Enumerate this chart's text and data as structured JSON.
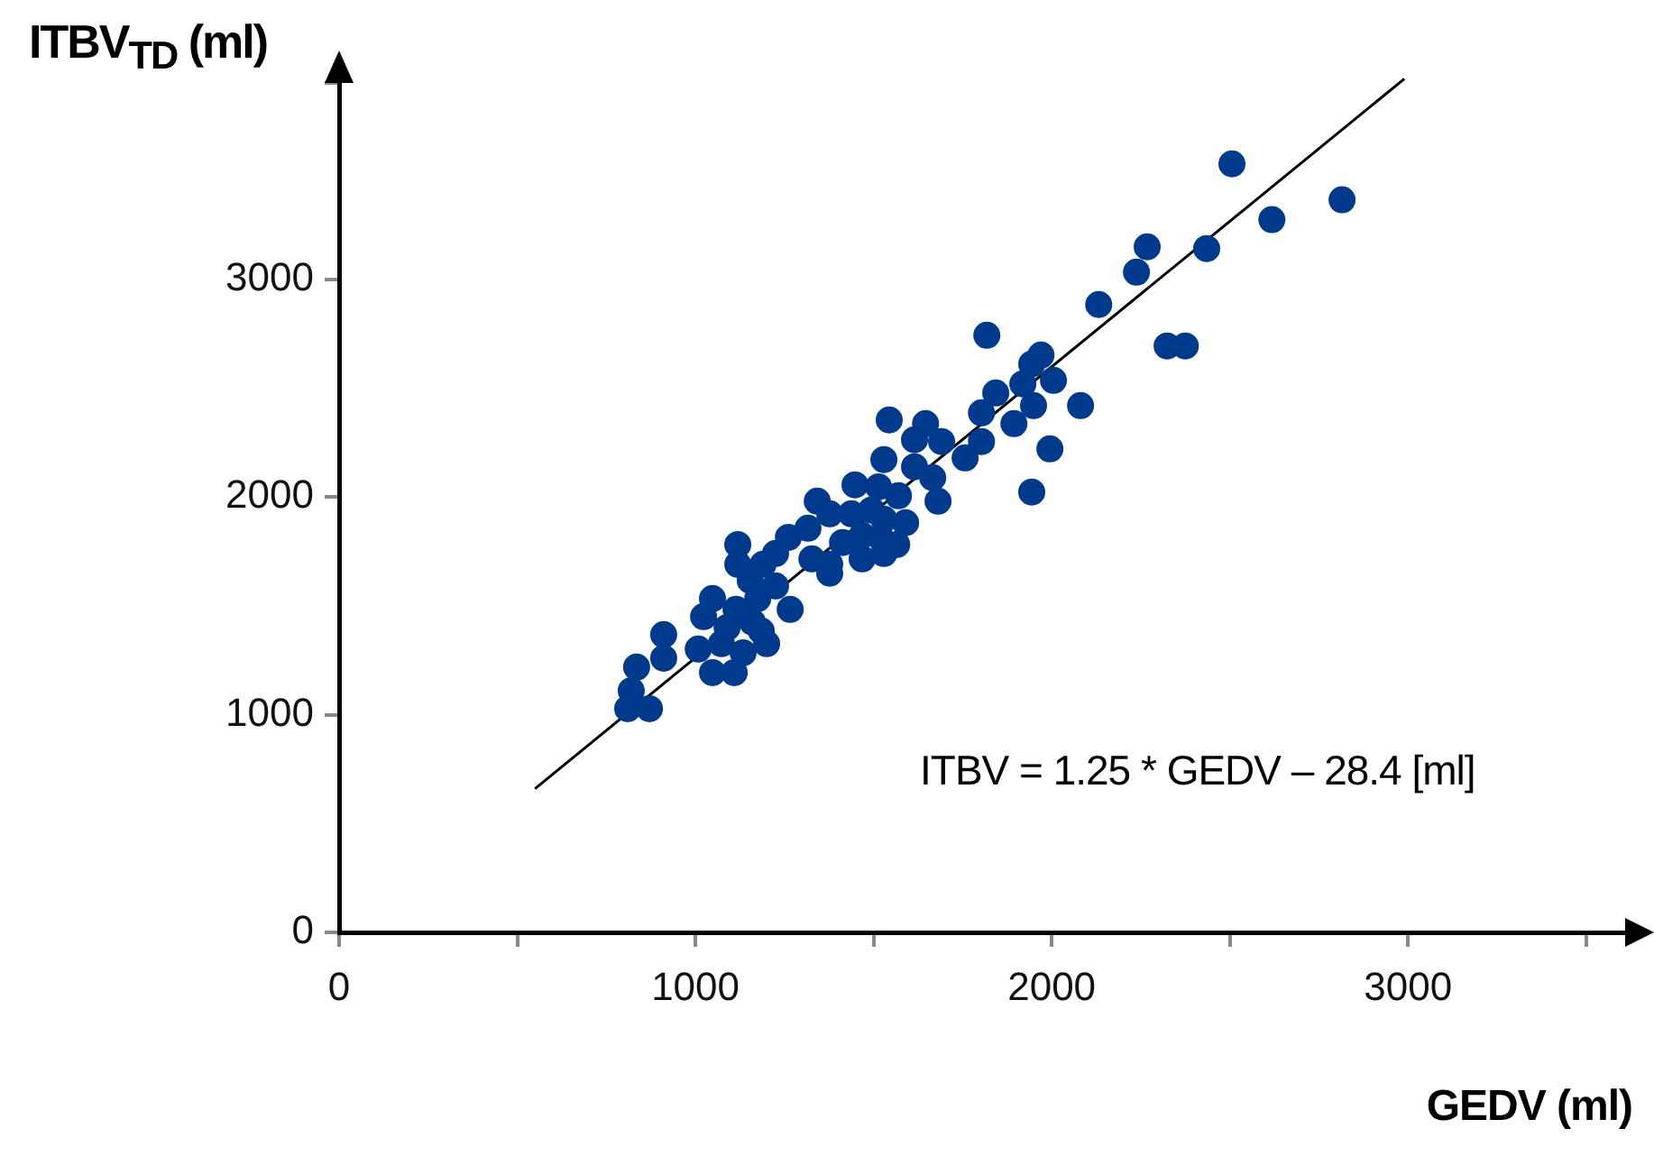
{
  "chart_data": {
    "type": "scatter",
    "xlabel": "GEDV (ml)",
    "ylabel": "ITBV$_{TD}$ (ml)",
    "annotations": [
      "ITBV = 1.25 * GEDV – 28.4 [ml]"
    ],
    "xlim": [
      0,
      3650
    ],
    "ylim": [
      0,
      4000
    ],
    "xticks": [
      0,
      {
        "value": 500,
        "label": null
      },
      1000,
      {
        "value": 1500,
        "label": null
      },
      2000,
      {
        "value": 2500,
        "label": null
      },
      3000,
      {
        "value": 3500,
        "label": null
      }
    ],
    "yticks": [
      0,
      1000,
      2000,
      3000,
      {
        "value": 3900,
        "label": null
      }
    ],
    "grid": false,
    "legend": false,
    "marker": "circle",
    "series": [
      {
        "color": "#003a8c",
        "x": [
          2506,
          2815,
          2618,
          2268,
          2435,
          2238,
          2132,
          2324,
          2375,
          1970,
          1944,
          1919,
          2005,
          1949,
          2081,
          1894,
          1995,
          1944,
          1818,
          1843,
          1803,
          1803,
          1757,
          1544,
          1646,
          1615,
          1691,
          1529,
          1615,
          1666,
          1681,
          1448,
          1514,
          1570,
          1342,
          1377,
          1438,
          1494,
          1529,
          1590,
          1316,
          1413,
          1468,
          1519,
          1565,
          1261,
          1225,
          1468,
          1529,
          1327,
          1377,
          1190,
          1119,
          1119,
          1154,
          1048,
          1023,
          1114,
          1175,
          1225,
          1266,
          1377,
          911,
          911,
          1008,
          1073,
          1134,
          1200,
          1048,
          1109,
          835,
          820,
          810,
          871,
          1160,
          1089,
          1185
        ],
        "values": [
          3529,
          3364,
          3273,
          3148,
          3140,
          3032,
          2883,
          2693,
          2693,
          2651,
          2610,
          2519,
          2535,
          2419,
          2419,
          2336,
          2220,
          2022,
          2742,
          2477,
          2386,
          2254,
          2179,
          2353,
          2336,
          2262,
          2254,
          2171,
          2138,
          2088,
          1980,
          2055,
          2046,
          2005,
          1980,
          1922,
          1922,
          1939,
          1897,
          1881,
          1856,
          1790,
          1823,
          1814,
          1781,
          1814,
          1740,
          1715,
          1740,
          1715,
          1690,
          1690,
          1781,
          1690,
          1616,
          1533,
          1450,
          1483,
          1533,
          1591,
          1483,
          1649,
          1367,
          1259,
          1301,
          1326,
          1284,
          1326,
          1193,
          1193,
          1218,
          1110,
          1027,
          1027,
          1425,
          1400,
          1384
        ]
      },
      {
        "type": "line",
        "color": "#000000",
        "x": [
          550,
          2990
        ],
        "values": [
          660,
          3920
        ],
        "marker": "none"
      }
    ]
  }
}
